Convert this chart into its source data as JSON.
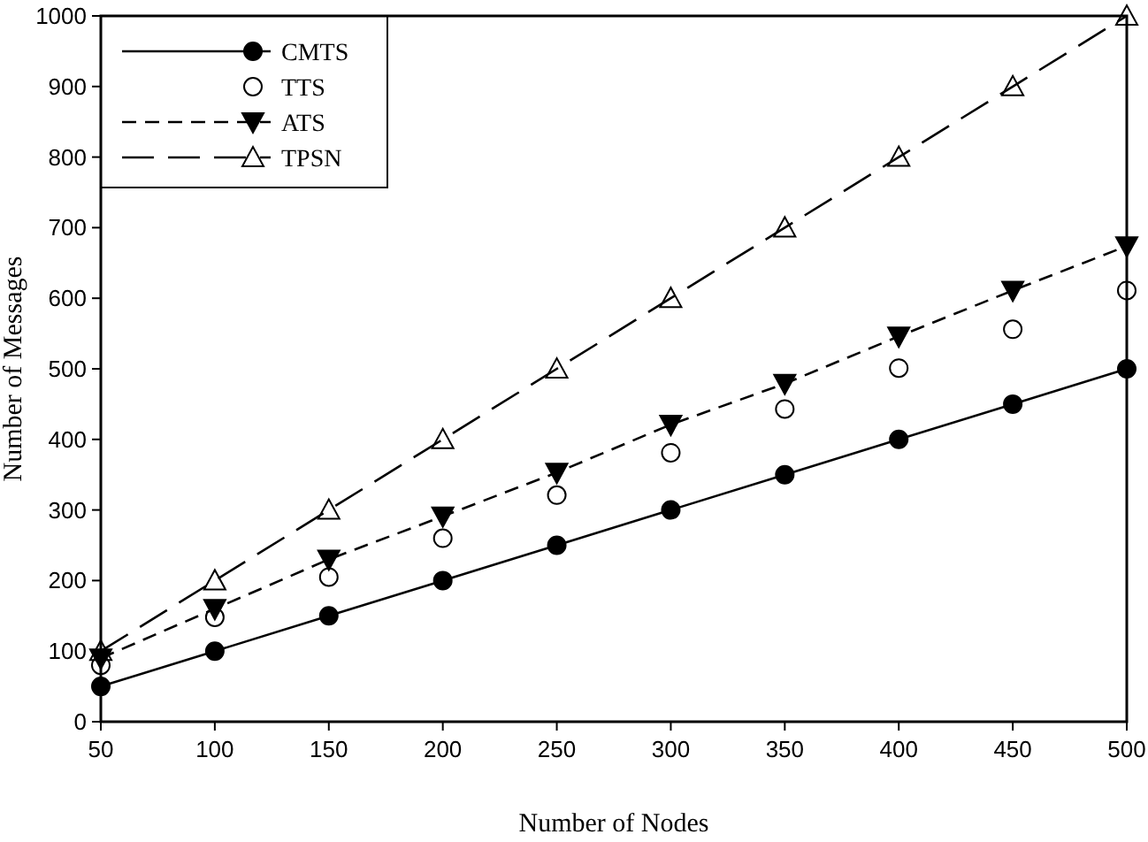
{
  "chart_data": {
    "type": "line",
    "xlabel": "Number of Nodes",
    "ylabel": "Number of Messages",
    "x": [
      50,
      100,
      150,
      200,
      250,
      300,
      350,
      400,
      450,
      500
    ],
    "series": [
      {
        "name": "CMTS",
        "color": "#000000",
        "marker": "circle",
        "line_style": "solid",
        "values": [
          50,
          100,
          150,
          200,
          250,
          300,
          350,
          400,
          450,
          500
        ]
      },
      {
        "name": "TTS",
        "type": "scatter",
        "color": "#000000",
        "marker": "circle",
        "values": [
          80,
          148,
          205,
          260,
          321,
          381,
          443,
          501,
          556,
          611
        ]
      },
      {
        "name": "ATS",
        "color": "#000000",
        "marker": "triangle",
        "line_style": "dashed",
        "values": [
          90,
          160,
          230,
          291,
          353,
          421,
          479,
          546,
          611,
          674
        ]
      },
      {
        "name": "TPSN",
        "color": "#000000",
        "marker": "triangle",
        "line_style": "dashed",
        "values": [
          100,
          200,
          300,
          400,
          500,
          600,
          700,
          800,
          900,
          1000
        ]
      }
    ],
    "xlim": [
      50,
      500
    ],
    "xticks": [
      50,
      100,
      150,
      200,
      250,
      300,
      350,
      400,
      450,
      500
    ],
    "ylim": [
      0,
      1000
    ],
    "yticks": [
      0,
      100,
      200,
      300,
      400,
      500,
      600,
      700,
      800,
      900,
      1000
    ],
    "legend": "top left",
    "grid": false
  }
}
